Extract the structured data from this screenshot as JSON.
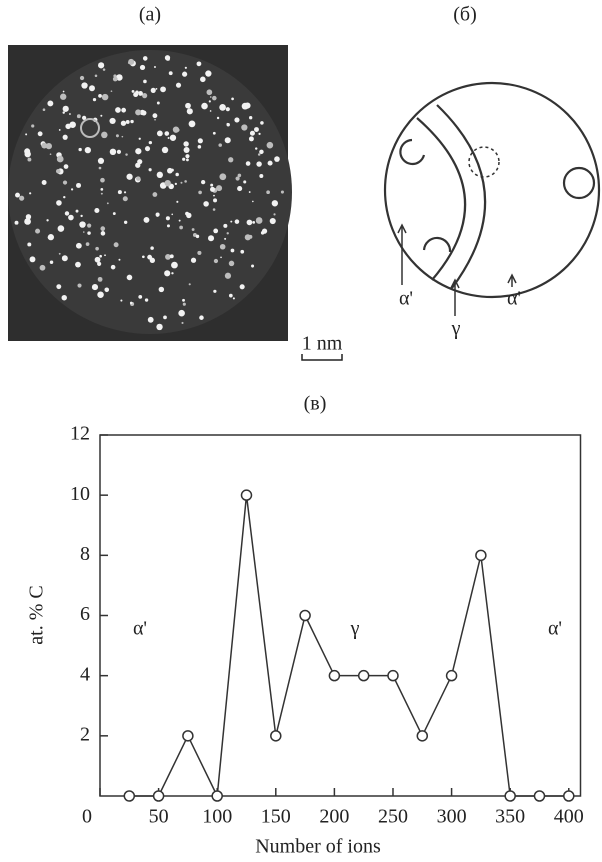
{
  "panel_a": {
    "label": "(a)",
    "scale_bar": "1 nm"
  },
  "panel_b": {
    "label": "(б)",
    "labels": [
      "α'",
      "γ",
      "α'"
    ]
  },
  "chart_data": {
    "type": "line",
    "panel_label": "(в)",
    "x_label": "Number of ions",
    "y_label": "at. % C",
    "x": [
      25,
      50,
      75,
      100,
      125,
      150,
      175,
      200,
      225,
      250,
      275,
      300,
      325,
      350,
      375,
      400
    ],
    "series": [
      {
        "color": "#333333",
        "values": [
          0,
          0,
          2,
          0,
          10,
          2,
          6,
          4,
          4,
          4,
          2,
          4,
          8,
          0,
          0,
          0
        ]
      }
    ],
    "annotations": [
      "α'",
      "γ",
      "α'"
    ],
    "xlim": [
      0,
      410
    ],
    "ylim": [
      0,
      12
    ],
    "xticks": [
      0,
      50,
      100,
      150,
      200,
      250,
      300,
      350,
      400
    ],
    "yticks": [
      2,
      4,
      6,
      8,
      10,
      12
    ],
    "grid": false
  }
}
